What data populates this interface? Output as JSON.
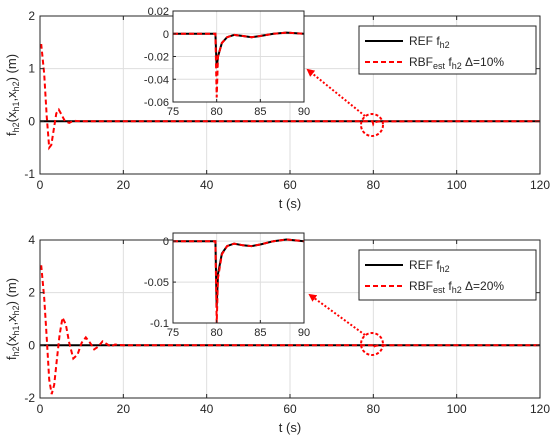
{
  "colors": {
    "ref": "#000000",
    "rbf": "#ff0000",
    "axis": "#262626",
    "grid": "#dedede"
  },
  "chart_data": [
    {
      "type": "line",
      "xlabel": "t (s)",
      "ylabel": "f_h2(x_h1,x_h2) (m)",
      "ylabel_parts": {
        "main": "f",
        "sub1": "h2",
        "mid1": "(x",
        "sub2": "h1",
        "mid2": ",x",
        "sub3": "h2",
        "end": ") (m)"
      },
      "xlim": [
        0,
        120
      ],
      "ylim": [
        -1,
        2
      ],
      "xticks": [
        "0",
        "20",
        "40",
        "60",
        "80",
        "100",
        "120"
      ],
      "yticks": [
        "-1",
        "0",
        "1",
        "2"
      ],
      "grid": true,
      "legend_position": "top-right",
      "series": [
        {
          "name": "REF f_h2",
          "legend": {
            "main": "REF f",
            "sub": "h2",
            "extra": ""
          },
          "x": [
            0,
            120
          ],
          "y": [
            0,
            0
          ]
        },
        {
          "name": "RBF_est f_h2 Δ=10%",
          "legend": {
            "main": "RBF",
            "sub": "est",
            "mid": " f",
            "sub2": "h2",
            "extra": " Δ=10%"
          },
          "x": [
            0,
            0.3,
            1,
            1.6,
            2.2,
            2.7,
            3.3,
            3.9,
            4.5,
            5.2,
            6,
            7,
            8,
            10,
            20,
            79.8,
            80,
            80.3,
            80.8,
            81.5,
            84,
            88,
            120
          ],
          "y": [
            1.45,
            1.45,
            0.9,
            0.1,
            -0.5,
            -0.45,
            -0.15,
            0.15,
            0.22,
            0.12,
            0.0,
            -0.03,
            0.01,
            0.0,
            0.0,
            0.0,
            -0.056,
            -0.02,
            -0.008,
            -0.002,
            -0.001,
            0.0,
            0.0
          ]
        }
      ],
      "inset": {
        "xlim": [
          75,
          90
        ],
        "ylim": [
          -0.06,
          0.02
        ],
        "xticks": [
          "75",
          "80",
          "85",
          "90"
        ],
        "yticks": [
          "-0.06",
          "-0.04",
          "-0.02",
          "0",
          "0.02"
        ],
        "ref": {
          "x": [
            75,
            79.85,
            80.0,
            80.15,
            80.6,
            81.2,
            82,
            83,
            84,
            85,
            86.5,
            88,
            90
          ],
          "y": [
            0,
            0,
            -0.03,
            -0.02,
            -0.008,
            -0.003,
            -0.001,
            -0.002,
            -0.003,
            -0.002,
            0,
            0.001,
            0
          ]
        },
        "rbf": {
          "x": [
            75,
            79.85,
            80.0,
            80.15,
            80.6,
            81.2,
            82,
            83,
            84,
            85,
            86.5,
            88,
            90
          ],
          "y": [
            0,
            0,
            -0.056,
            -0.02,
            -0.008,
            -0.003,
            -0.001,
            -0.002,
            -0.003,
            -0.002,
            0,
            0.001,
            0
          ]
        }
      }
    },
    {
      "type": "line",
      "xlabel": "t (s)",
      "ylabel": "f_h2(x_h1,x_h2) (m)",
      "ylabel_parts": {
        "main": "f",
        "sub1": "h2",
        "mid1": "(x",
        "sub2": "h1",
        "mid2": ",x",
        "sub3": "h2",
        "end": ") (m)"
      },
      "xlim": [
        0,
        120
      ],
      "ylim": [
        -2,
        4
      ],
      "xticks": [
        "0",
        "20",
        "40",
        "60",
        "80",
        "100",
        "120"
      ],
      "yticks": [
        "-2",
        "0",
        "2",
        "4"
      ],
      "grid": true,
      "legend_position": "top-right",
      "series": [
        {
          "name": "REF f_h2",
          "legend": {
            "main": "REF f",
            "sub": "h2",
            "extra": ""
          },
          "x": [
            0,
            120
          ],
          "y": [
            0,
            0
          ]
        },
        {
          "name": "RBF_est f_h2 Δ=20%",
          "legend": {
            "main": "RBF",
            "sub": "est",
            "mid": " f",
            "sub2": "h2",
            "extra": " Δ=20%"
          },
          "x": [
            0,
            0.3,
            1,
            1.6,
            2.2,
            2.8,
            3.4,
            4,
            4.7,
            5.4,
            6.2,
            7,
            8,
            9,
            10,
            11,
            12,
            13,
            14,
            15,
            16,
            17,
            18,
            20,
            79.8,
            80,
            80.3,
            80.8,
            81.5,
            84,
            120
          ],
          "y": [
            3.0,
            3.0,
            1.8,
            0.3,
            -1.3,
            -1.85,
            -1.5,
            -0.6,
            0.4,
            1.05,
            0.8,
            0.1,
            -0.5,
            -0.35,
            0.1,
            0.3,
            0.1,
            -0.15,
            -0.05,
            0.15,
            0.05,
            -0.05,
            0.03,
            0.0,
            0.0,
            -0.09,
            -0.03,
            -0.01,
            -0.003,
            0.0,
            0.0
          ]
        }
      ],
      "inset": {
        "xlim": [
          75,
          90
        ],
        "ylim": [
          -0.1,
          0.01
        ],
        "xticks": [
          "75",
          "80",
          "85",
          "90"
        ],
        "yticks": [
          "-0.1",
          "-0.05",
          "0"
        ],
        "ref": {
          "x": [
            75,
            79.85,
            80.0,
            80.15,
            80.6,
            81.2,
            82,
            83,
            84,
            85,
            86.5,
            88,
            90
          ],
          "y": [
            0,
            0,
            -0.08,
            -0.04,
            -0.015,
            -0.006,
            -0.003,
            -0.005,
            -0.006,
            -0.004,
            0,
            0.002,
            0
          ]
        },
        "rbf": {
          "x": [
            75,
            79.85,
            80.0,
            80.15,
            80.6,
            81.2,
            82,
            83,
            84,
            85,
            86.5,
            88,
            90
          ],
          "y": [
            0,
            0,
            -0.1,
            -0.045,
            -0.016,
            -0.006,
            -0.003,
            -0.005,
            -0.006,
            -0.004,
            0,
            0.002,
            0
          ]
        }
      }
    }
  ]
}
